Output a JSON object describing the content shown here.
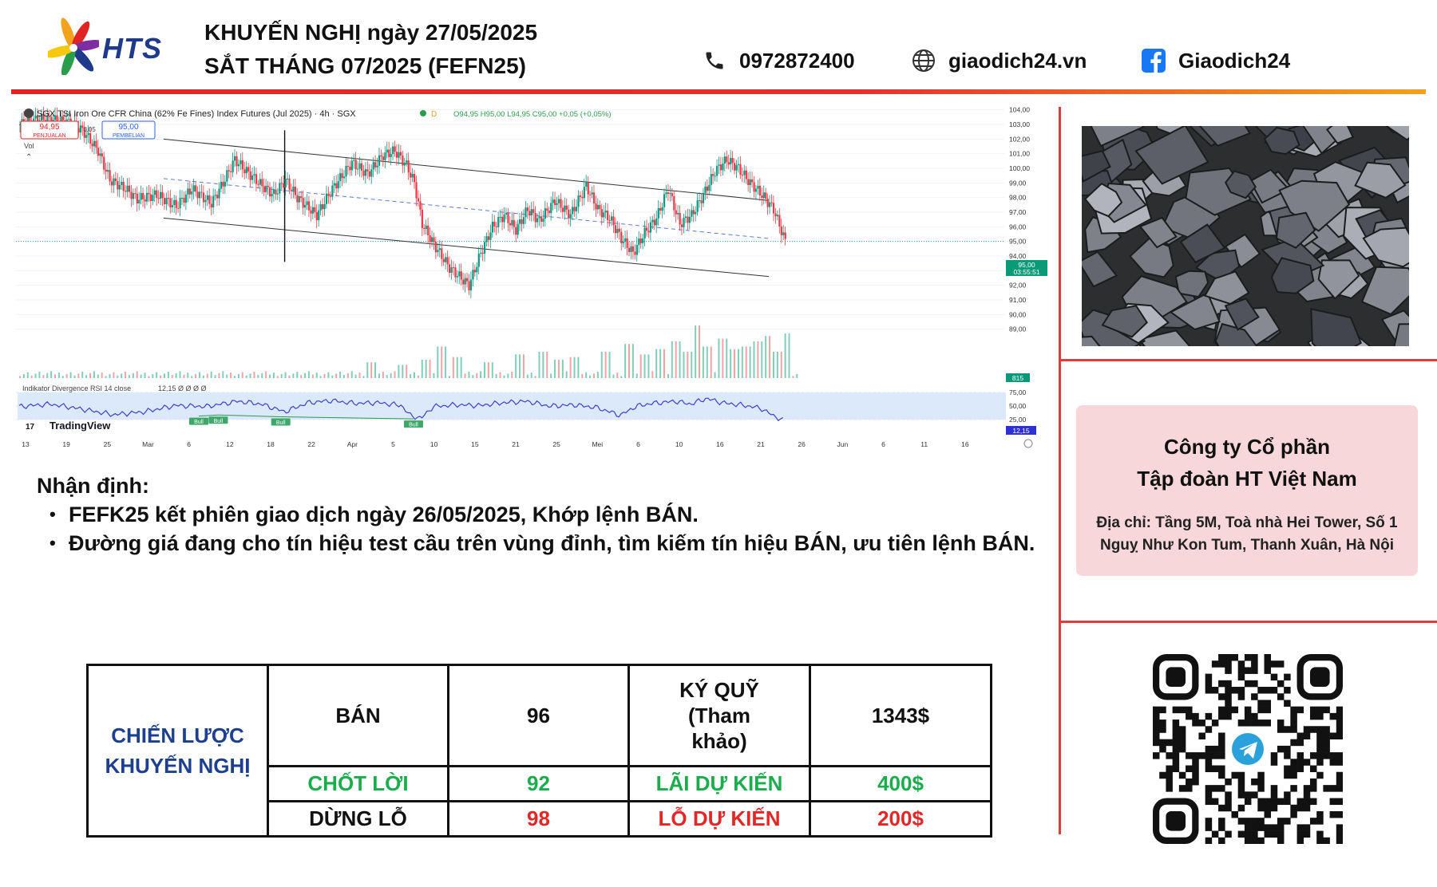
{
  "brand": {
    "name": "HTS",
    "colors": {
      "accent_red": "#e02424",
      "accent_orange": "#f2a21b",
      "brand_blue": "#1f3a8a"
    }
  },
  "header": {
    "title_line1": "KHUYẾN NGHỊ ngày 27/05/2025",
    "title_line2": "SẮT THÁNG 07/2025 (FEFN25)",
    "phone": "0972872400",
    "website": "giaodich24.vn",
    "facebook": "Giaodich24",
    "icons": [
      "phone-icon",
      "globe-icon",
      "facebook-icon"
    ]
  },
  "chart": {
    "title": "SGX TSI Iron Ore CFR China (62% Fe Fines) Index Futures (Jul 2025) · 4h · SGX",
    "ohlc": "O94,95 H95,00 L94,95 C95,00 +0,05 (+0,05%)",
    "sell_box_price": "94,95",
    "sell_box_label": "PENJUALAN",
    "spread": "0,05",
    "buy_box_price": "95,00",
    "buy_box_label": "PEMBELIAN",
    "vol_label": "Vol",
    "last_price_tag": "95,00",
    "countdown_tag": "03:55:51",
    "volume_tag": "815",
    "rsi_label": "Indikator Divergence RSI 14 close",
    "rsi_value_text": "12,15 Ø Ø Ø Ø",
    "rsi_tag": "12,15",
    "bull_label": "Bull",
    "tradingview_label": "TradingView"
  },
  "chart_data": {
    "type": "candlestick",
    "title": "SGX TSI Iron Ore CFR China (62% Fe Fines) Index Futures (Jul 2025) · 4h · SGX",
    "y_ticks": [
      "104,00",
      "103,00",
      "102,00",
      "101,00",
      "100,00",
      "99,00",
      "98,00",
      "97,00",
      "96,00",
      "95,00",
      "94,00",
      "93,00",
      "92,00",
      "91,00",
      "90,00",
      "89,00"
    ],
    "ylim": [
      88.6,
      104.2
    ],
    "rsi_ticks": [
      "75,00",
      "50,00",
      "25,00"
    ],
    "x_ticks": [
      "13",
      "19",
      "25",
      "Mar",
      "6",
      "12",
      "18",
      "22",
      "Apr",
      "5",
      "10",
      "15",
      "21",
      "25",
      "Mei",
      "6",
      "10",
      "16",
      "21",
      "26",
      "Jun",
      "6",
      "11",
      "16"
    ],
    "price_path": {
      "x": [
        0,
        5,
        12,
        16,
        20,
        23,
        27,
        30,
        35,
        40,
        44,
        49,
        52,
        55,
        58,
        62,
        65,
        68,
        71,
        76,
        80,
        85,
        89,
        93,
        96,
        99,
        101,
        103,
        106,
        110,
        115,
        118,
        121,
        124,
        127,
        130,
        133,
        137,
        141,
        145,
        148,
        151,
        154,
        157,
        160,
        163,
        166,
        169,
        172,
        175,
        178,
        181,
        184,
        187,
        190,
        193,
        196
      ],
      "y": [
        103.0,
        103.4,
        103.2,
        102.6,
        101.2,
        99.2,
        98.6,
        97.9,
        98.2,
        97.4,
        98.6,
        97.6,
        99.0,
        100.6,
        99.8,
        98.8,
        98.2,
        99.2,
        98.0,
        96.8,
        98.6,
        100.4,
        99.6,
        100.9,
        101.2,
        100.2,
        99.0,
        96.2,
        94.8,
        93.2,
        92.0,
        94.2,
        96.0,
        96.8,
        95.8,
        97.2,
        96.4,
        97.8,
        96.8,
        98.8,
        97.2,
        96.6,
        95.2,
        94.2,
        95.6,
        96.6,
        98.6,
        96.2,
        96.8,
        98.2,
        99.8,
        100.6,
        100.0,
        99.0,
        98.2,
        97.2,
        95.0
      ]
    },
    "channel_upper": {
      "x": [
        37,
        192
      ],
      "y": [
        102.0,
        97.8
      ]
    },
    "channel_middle": {
      "x": [
        37,
        192
      ],
      "y": [
        99.3,
        95.2
      ]
    },
    "channel_lower": {
      "x": [
        37,
        192
      ],
      "y": [
        96.6,
        92.6
      ]
    },
    "vertical_marker_x": 68,
    "last_price": 95.0,
    "rsi": {
      "x": [
        0,
        8,
        16,
        24,
        32,
        40,
        48,
        56,
        62,
        68,
        74,
        80,
        86,
        92,
        98,
        100,
        103,
        106,
        112,
        118,
        124,
        130,
        136,
        142,
        148,
        154,
        158,
        162,
        168,
        172,
        176,
        180,
        186,
        190,
        193,
        196
      ],
      "y": [
        55,
        62,
        48,
        32,
        40,
        58,
        55,
        70,
        62,
        40,
        66,
        72,
        64,
        66,
        58,
        30,
        22,
        55,
        60,
        58,
        66,
        70,
        56,
        60,
        52,
        30,
        56,
        64,
        70,
        62,
        78,
        66,
        58,
        50,
        30,
        14
      ]
    },
    "bull_markers": [
      {
        "x": 46,
        "y": 28
      },
      {
        "x": 51,
        "y": 31
      },
      {
        "x": 67,
        "y": 26
      },
      {
        "x": 101,
        "y": 20
      }
    ],
    "volume": [
      [
        90,
        0.3
      ],
      [
        98,
        0.25
      ],
      [
        104,
        0.35
      ],
      [
        108,
        0.6
      ],
      [
        112,
        0.4
      ],
      [
        120,
        0.3
      ],
      [
        128,
        0.45
      ],
      [
        134,
        0.5
      ],
      [
        138,
        0.35
      ],
      [
        142,
        0.4
      ],
      [
        150,
        0.5
      ],
      [
        156,
        0.65
      ],
      [
        160,
        0.45
      ],
      [
        164,
        0.55
      ],
      [
        168,
        0.7
      ],
      [
        171,
        0.5
      ],
      [
        173,
        1.0
      ],
      [
        176,
        0.6
      ],
      [
        180,
        0.75
      ],
      [
        183,
        0.55
      ],
      [
        186,
        0.6
      ],
      [
        189,
        0.7
      ],
      [
        191,
        0.8
      ],
      [
        194,
        0.5
      ],
      [
        196,
        0.85
      ]
    ],
    "x_domain": [
      0,
      220
    ]
  },
  "analysis": {
    "heading": "Nhận định:",
    "bullets": [
      "FEFK25 kết phiên giao dịch ngày 26/05/2025, Khớp lệnh BÁN.",
      "Đường giá đang cho tín hiệu test cầu trên vùng đỉnh, tìm kiếm tín hiệu BÁN, ưu tiên lệnh BÁN."
    ]
  },
  "strategy_table": {
    "label": "CHIẾN LƯỢC KHUYẾN NGHỊ",
    "rows": [
      [
        "BÁN",
        "96",
        "KÝ QUỸ (Tham khảo)",
        "1343$"
      ],
      [
        "CHỐT LỜI",
        "92",
        "LÃI DỰ KIẾN",
        "400$"
      ],
      [
        "DỪNG LỖ",
        "98",
        "LỖ DỰ KIẾN",
        "200$"
      ]
    ],
    "colors": {
      "black": "#111111",
      "green": "#19ad4b",
      "red": "#e32626",
      "blue": "#1d3f8f"
    }
  },
  "company": {
    "name_line1": "Công ty Cổ phần",
    "name_line2": "Tập đoàn HT Việt Nam",
    "address": "Địa chỉ: Tầng 5M, Toà nhà Hei Tower, Số 1 Nguỵ Như Kon Tum, Thanh Xuân, Hà Nội"
  }
}
